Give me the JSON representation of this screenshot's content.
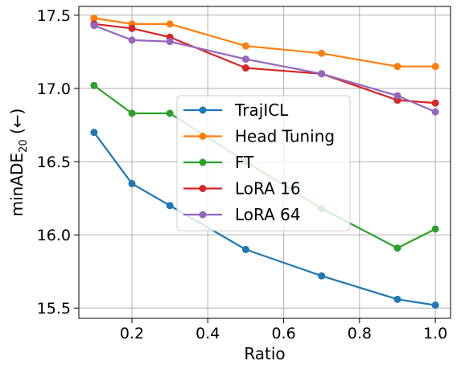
{
  "chart_data": {
    "type": "line",
    "title": "",
    "xlabel": "Ratio",
    "ylabel": "minADE",
    "ylabel_sub": "20",
    "ylabel_suffix": " (←)",
    "xlim": [
      0.06,
      1.04
    ],
    "ylim": [
      15.43,
      17.56
    ],
    "x": [
      0.1,
      0.2,
      0.3,
      0.5,
      0.7,
      0.9,
      1.0
    ],
    "xticks": [
      0.2,
      0.4,
      0.6,
      0.8,
      1.0
    ],
    "xtick_labels": [
      "0.2",
      "0.4",
      "0.6",
      "0.8",
      "1.0"
    ],
    "yticks": [
      15.5,
      16.0,
      16.5,
      17.0,
      17.5
    ],
    "ytick_labels": [
      "15.5",
      "16.0",
      "16.5",
      "17.0",
      "17.5"
    ],
    "grid": true,
    "legend_position": "center",
    "series": [
      {
        "name": "TrajICL",
        "color": "#1f77b4",
        "values": [
          16.7,
          16.35,
          16.2,
          15.9,
          15.72,
          15.56,
          15.52
        ]
      },
      {
        "name": "Head Tuning",
        "color": "#ff7f0e",
        "values": [
          17.48,
          17.44,
          17.44,
          17.29,
          17.24,
          17.15,
          17.15
        ]
      },
      {
        "name": "FT",
        "color": "#2ca02c",
        "values": [
          17.02,
          16.83,
          16.83,
          16.5,
          16.18,
          15.91,
          16.04
        ]
      },
      {
        "name": "LoRA 16",
        "color": "#d62728",
        "values": [
          17.44,
          17.41,
          17.35,
          17.14,
          17.1,
          16.92,
          16.9
        ]
      },
      {
        "name": "LoRA 64",
        "color": "#9467bd",
        "values": [
          17.43,
          17.33,
          17.32,
          17.2,
          17.1,
          16.95,
          16.84
        ]
      }
    ]
  }
}
